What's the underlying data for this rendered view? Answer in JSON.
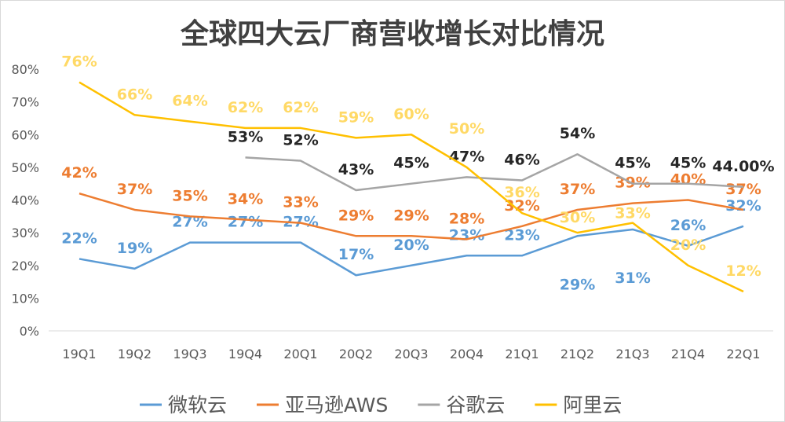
{
  "chart_data": {
    "type": "line",
    "title": "全球四大云厂商营收增长对比情况",
    "categories": [
      "19Q1",
      "19Q2",
      "19Q3",
      "19Q4",
      "20Q1",
      "20Q2",
      "20Q3",
      "20Q4",
      "21Q1",
      "21Q2",
      "21Q3",
      "21Q4",
      "22Q1"
    ],
    "ylim": [
      0,
      80
    ],
    "yticks": [
      "0%",
      "10%",
      "20%",
      "30%",
      "40%",
      "50%",
      "60%",
      "70%",
      "80%"
    ],
    "grid": false,
    "legend": "bottom",
    "series": [
      {
        "name": "微软云",
        "color": "#5B9BD5",
        "values": [
          22,
          19,
          27,
          27,
          27,
          17,
          20,
          23,
          23,
          29,
          31,
          26,
          32
        ],
        "labels": [
          "22%",
          "19%",
          "27%",
          "27%",
          "27%",
          "17%",
          "20%",
          "23%",
          "23%",
          "29%",
          "31%",
          "26%",
          "32%"
        ]
      },
      {
        "name": "亚马逊AWS",
        "color": "#ED7D31",
        "values": [
          42,
          37,
          35,
          34,
          33,
          29,
          29,
          28,
          32,
          37,
          39,
          40,
          37
        ],
        "labels": [
          "42%",
          "37%",
          "35%",
          "34%",
          "33%",
          "29%",
          "29%",
          "28%",
          "32%",
          "37%",
          "39%",
          "40%",
          "37%"
        ]
      },
      {
        "name": "谷歌云",
        "color": "#A5A5A5",
        "labelColor": "#262626",
        "values": [
          null,
          null,
          null,
          53,
          52,
          43,
          45,
          47,
          46,
          54,
          45,
          45,
          44
        ],
        "labels": [
          null,
          null,
          null,
          "53%",
          "52%",
          "43%",
          "45%",
          "47%",
          "46%",
          "54%",
          "45%",
          "45%",
          "44.00%"
        ]
      },
      {
        "name": "阿里云",
        "color": "#FFC000",
        "labelColor": "#FFD966",
        "values": [
          76,
          66,
          64,
          62,
          62,
          59,
          60,
          50,
          36,
          30,
          33,
          20,
          12
        ],
        "labels": [
          "76%",
          "66%",
          "64%",
          "62%",
          "62%",
          "59%",
          "60%",
          "50%",
          "36%",
          "30%",
          "33%",
          "20%",
          "12%"
        ]
      }
    ]
  }
}
